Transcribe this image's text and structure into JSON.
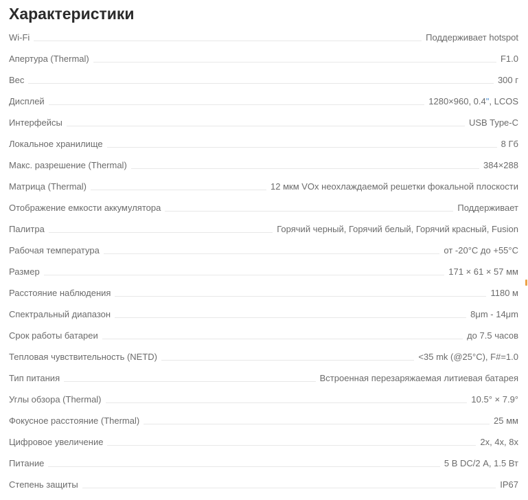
{
  "page": {
    "title": "Характеристики"
  },
  "accent_colors": {
    "link_blue": "#4a8fd3",
    "edge_marker_orange": "#eca348",
    "title_text": "#2b2b2b",
    "row_text": "#6b6b6b",
    "leader_line": "#e8e8e8"
  },
  "rows": [
    {
      "label": "Wi-Fi",
      "value": "Поддерживает hotspot"
    },
    {
      "label": "Апертура (Thermal)",
      "value": "F1.0"
    },
    {
      "label": "Вес",
      "value": "300 г"
    },
    {
      "label": "Дисплей",
      "value_parts": [
        {
          "text": "1280×960, 0.4"
        },
        {
          "text": "\"",
          "accent": true
        },
        {
          "text": ", LCOS"
        }
      ]
    },
    {
      "label": "Интерфейсы",
      "value": "USB Type-C"
    },
    {
      "label": "Локальное хранилище",
      "value": "8 Гб"
    },
    {
      "label": "Макс. разрешение (Thermal)",
      "value": "384×288"
    },
    {
      "label": "Матрица (Thermal)",
      "value": "12 мкм VOx неохлаждаемой решетки фокальной плоскости"
    },
    {
      "label": "Отображение емкости аккумулятора",
      "value": "Поддерживает"
    },
    {
      "label": "Палитра",
      "value": "Горячий черный, Горячий белый, Горячий красный, Fusion"
    },
    {
      "label": "Рабочая температура",
      "value": "от -20°C до +55°C"
    },
    {
      "label": "Размер",
      "value": "171 × 61 × 57 мм"
    },
    {
      "label": "Расстояние наблюдения",
      "value": "1180 м"
    },
    {
      "label": "Спектральный диапазон",
      "value": "8μm - 14μm"
    },
    {
      "label": "Срок работы батареи",
      "value": "до 7.5 часов"
    },
    {
      "label": "Тепловая чувствительность (NETD)",
      "value": "<35 mk (@25°C), F#=1.0"
    },
    {
      "label": "Тип питания",
      "value": "Встроенная перезаряжаемая литиевая батарея"
    },
    {
      "label": "Углы обзора (Thermal)",
      "value": "10.5° × 7.9°"
    },
    {
      "label": "Фокусное расстояние (Thermal)",
      "value": "25 мм"
    },
    {
      "label": "Цифровое увеличение",
      "value": "2x, 4x, 8x"
    },
    {
      "label": "Питание",
      "value": "5 В DC/2 А, 1.5 Вт"
    },
    {
      "label": "Степень защиты",
      "value": "IP67"
    }
  ]
}
